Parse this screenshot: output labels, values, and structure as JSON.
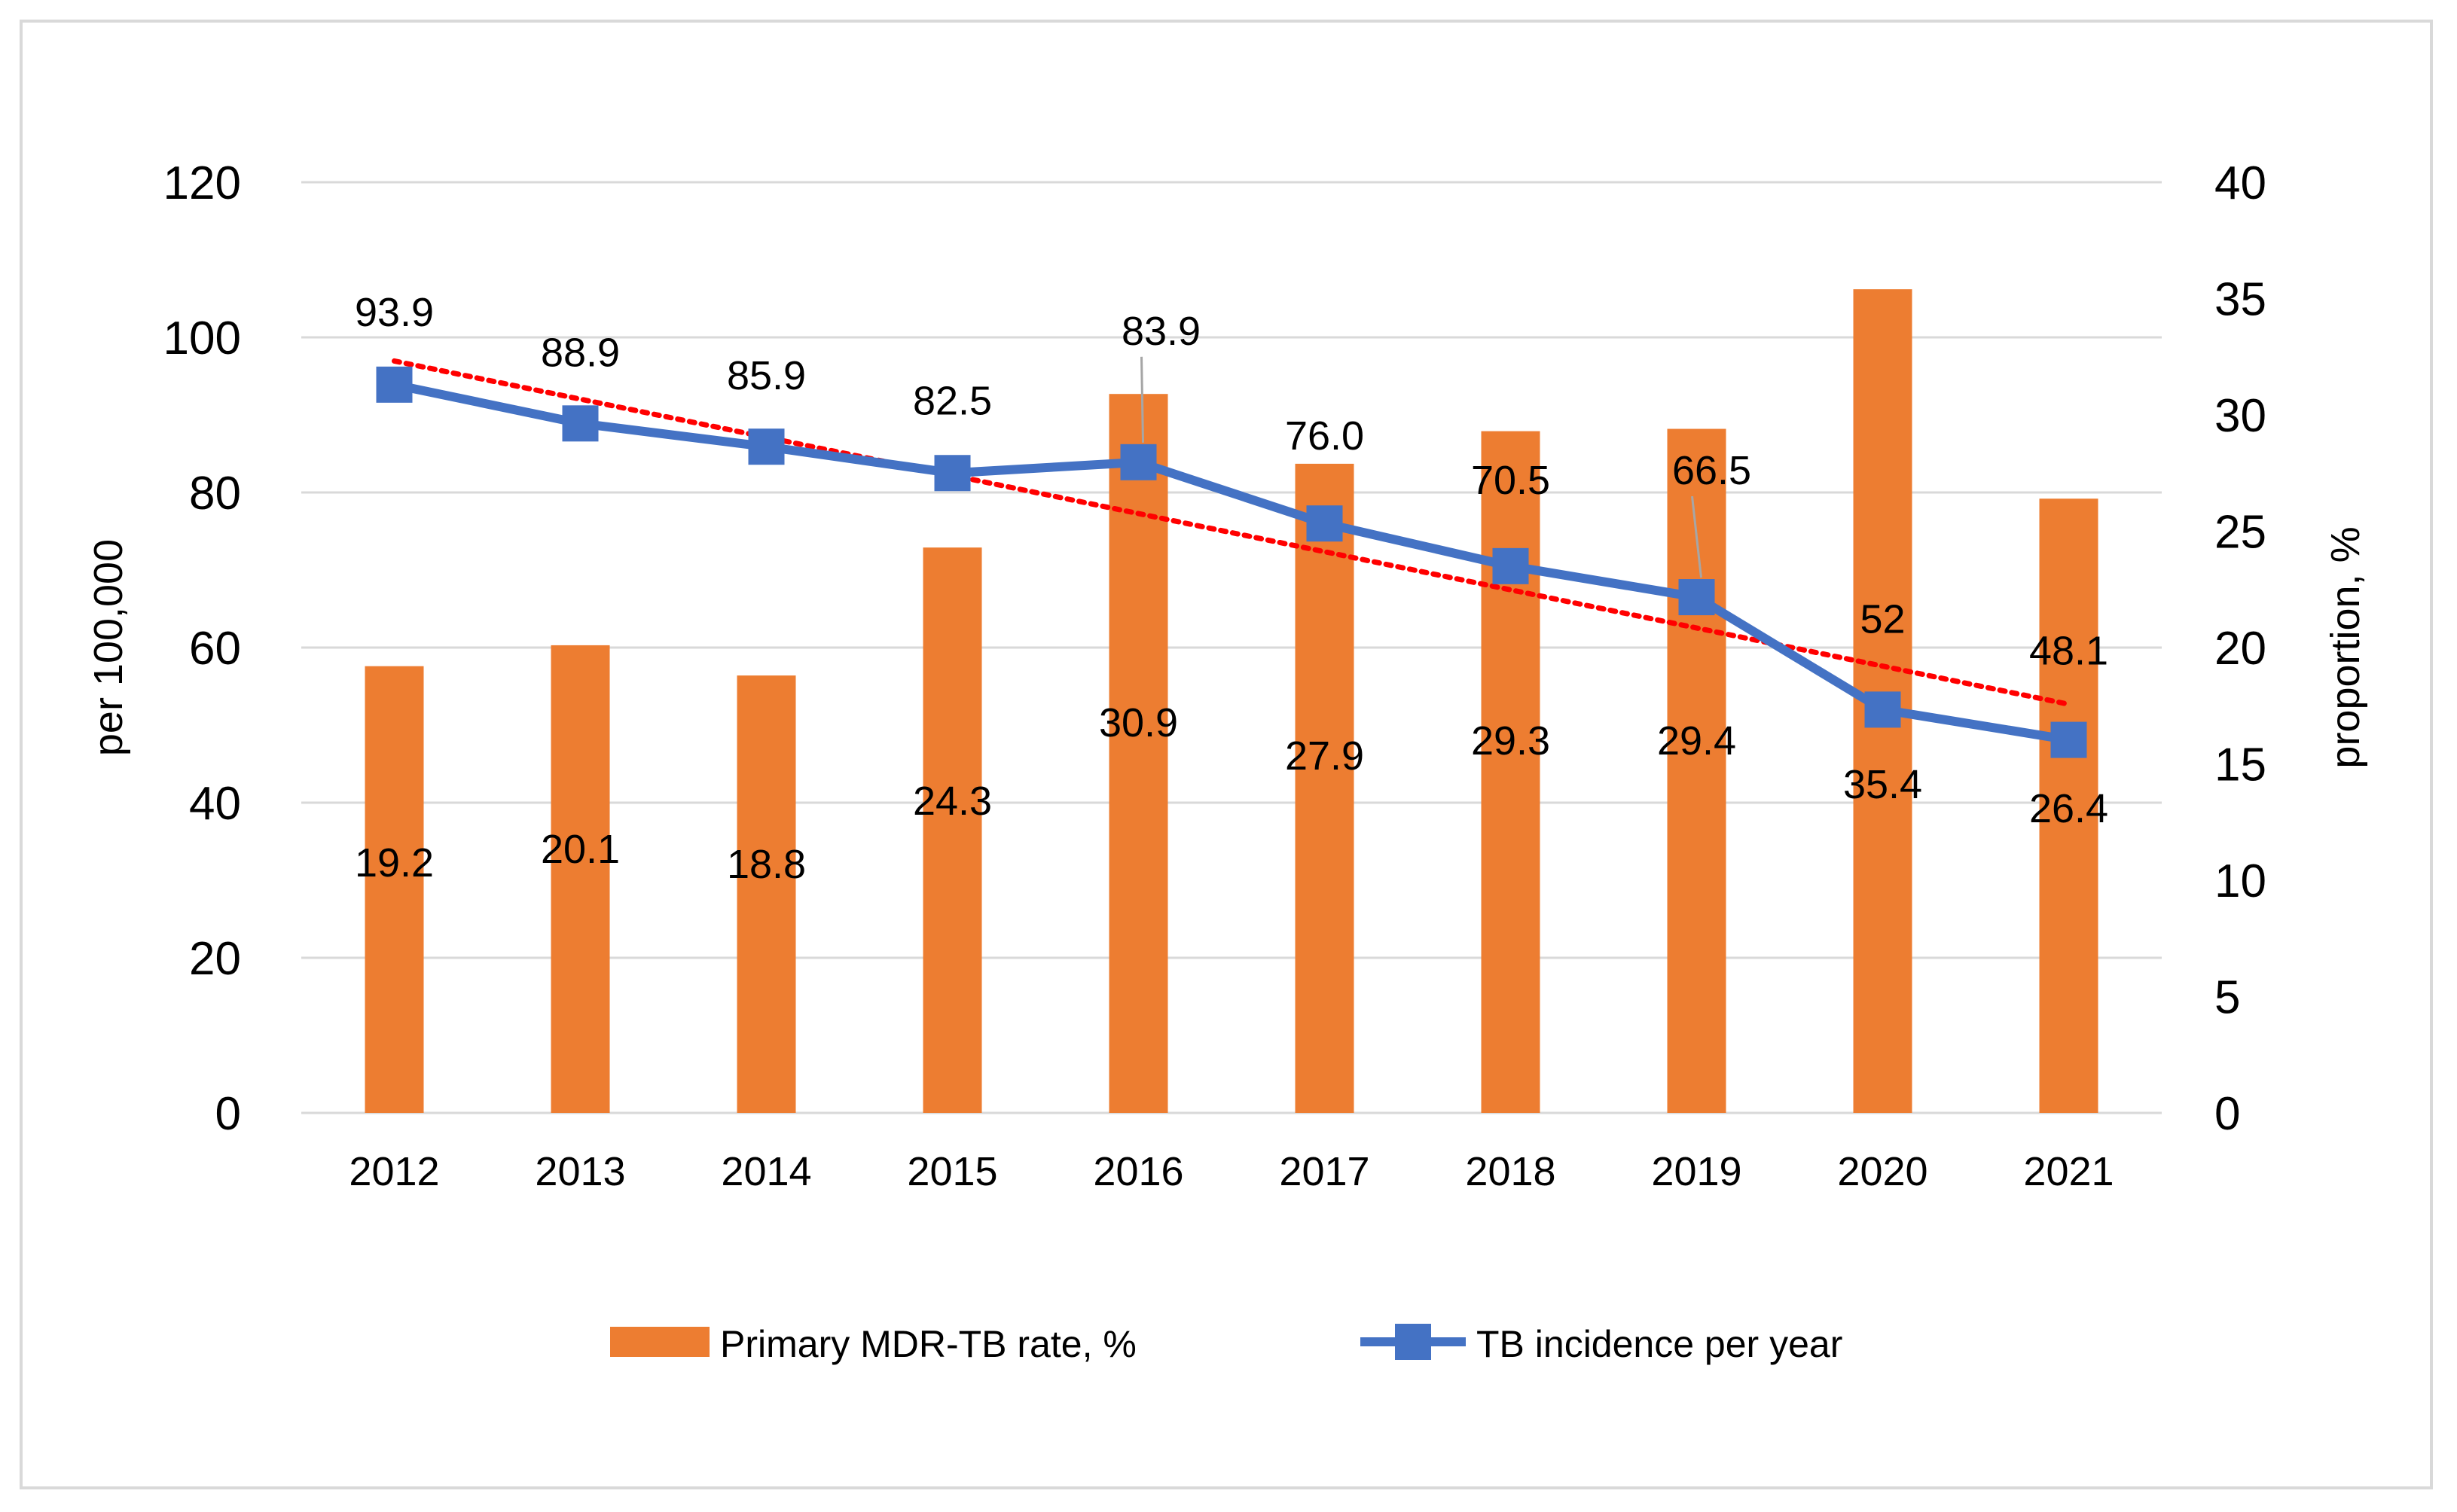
{
  "chart_data": {
    "type": "bar",
    "categories": [
      "2012",
      "2013",
      "2014",
      "2015",
      "2016",
      "2017",
      "2018",
      "2019",
      "2020",
      "2021"
    ],
    "series": [
      {
        "name": "Primary MDR-TB rate, %",
        "type": "bar",
        "axis": "right",
        "color": "#ed7d31",
        "values": [
          19.2,
          20.1,
          18.8,
          24.3,
          30.9,
          27.9,
          29.3,
          29.4,
          35.4,
          26.4
        ],
        "labels": [
          "19.2",
          "20.1",
          "18.8",
          "24.3",
          "30.9",
          "27.9",
          "29.3",
          "29.4",
          "35.4",
          "26.4"
        ]
      },
      {
        "name": "TB incidence per year",
        "type": "line",
        "axis": "left",
        "color": "#4472c4",
        "marker": "square",
        "values": [
          93.9,
          88.9,
          85.9,
          82.5,
          83.9,
          76.0,
          70.5,
          66.5,
          52,
          48.1
        ],
        "labels": [
          "93.9",
          "88.9",
          "85.9",
          "82.5",
          "83.9",
          "76.0",
          "70.5",
          "66.5",
          "52",
          "48.1"
        ]
      }
    ],
    "trendline": {
      "of_series": "TB incidence per year",
      "kind": "linear",
      "style": "dotted",
      "color": "#ff0000"
    },
    "ylabel": "per 100,000",
    "ylim": [
      0,
      120
    ],
    "yticks": [
      "0",
      "20",
      "40",
      "60",
      "80",
      "100",
      "120"
    ],
    "y2label": "proportion, %",
    "y2lim": [
      0,
      40
    ],
    "y2ticks": [
      "0",
      "5",
      "10",
      "15",
      "20",
      "25",
      "30",
      "35",
      "40"
    ],
    "grid": true,
    "legend_position": "bottom"
  }
}
